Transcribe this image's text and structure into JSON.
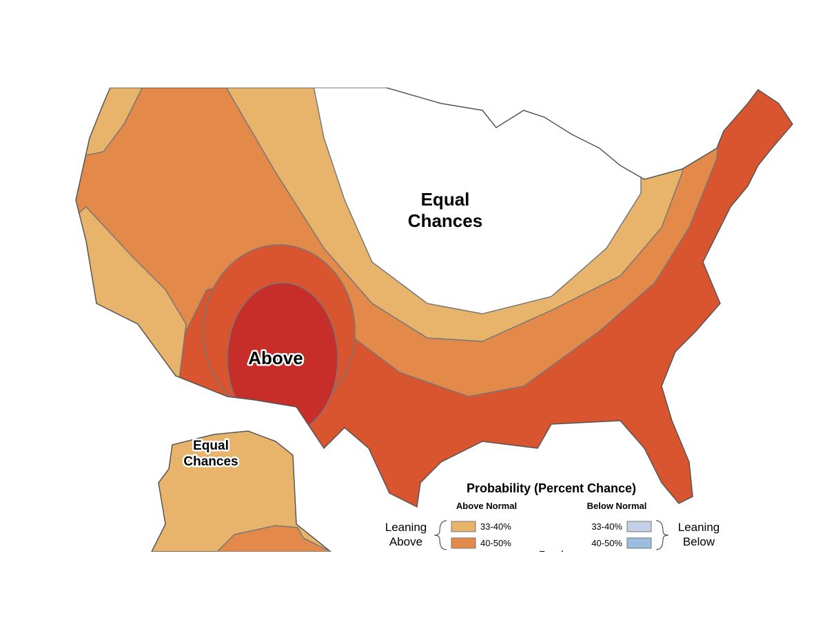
{
  "map": {
    "labels": {
      "conus_equal_chances": [
        "Equal",
        "Chances"
      ],
      "conus_above": "Above",
      "alaska_equal_chances": [
        "Equal",
        "Chances"
      ]
    },
    "legend": {
      "title": "Probability (Percent Chance)",
      "above_header": "Above Normal",
      "below_header": "Below Normal",
      "leaning_above": [
        "Leaning",
        "Above"
      ],
      "leaning_below": [
        "Leaning",
        "Below"
      ],
      "above_items": [
        {
          "label": "33-40%",
          "color": "#e8b36a"
        },
        {
          "label": "40-50%",
          "color": "#e3894a"
        }
      ],
      "below_items": [
        {
          "label": "33-40%",
          "color": "#c3d0e8"
        },
        {
          "label": "40-50%",
          "color": "#9dbde0"
        }
      ],
      "equal": "Equal"
    }
  }
}
